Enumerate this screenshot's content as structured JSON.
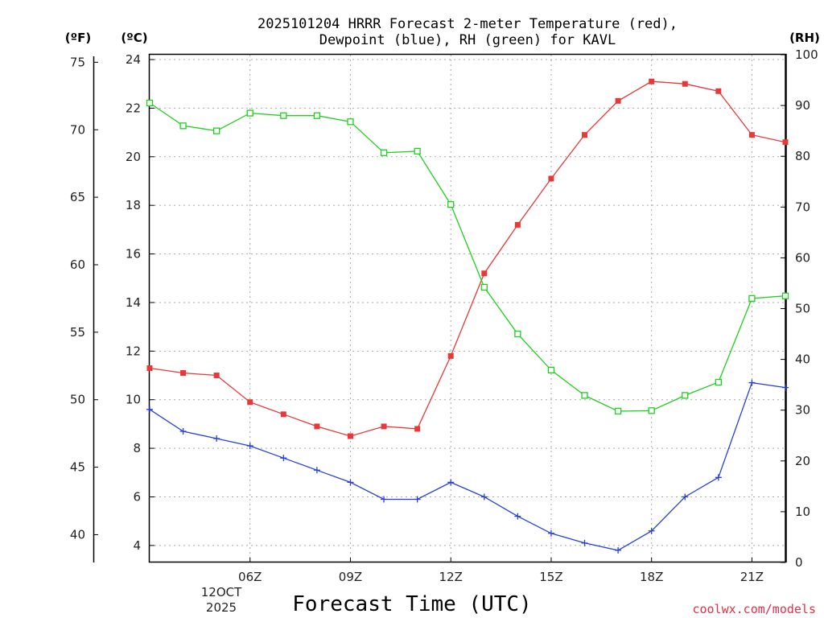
{
  "chart_data": {
    "type": "line",
    "title": [
      "2025101204 HRRR Forecast 2-meter Temperature (red),",
      "Dewpoint (blue), RH (green) for KAVL"
    ],
    "xlabel": "Forecast Time (UTC)",
    "x_range_hours": [
      3,
      22
    ],
    "x_ticks": [
      {
        "hour": 6,
        "label": "06Z"
      },
      {
        "hour": 9,
        "label": "09Z"
      },
      {
        "hour": 12,
        "label": "12Z"
      },
      {
        "hour": 15,
        "label": "15Z"
      },
      {
        "hour": 18,
        "label": "18Z"
      },
      {
        "hour": 21,
        "label": "21Z"
      }
    ],
    "date_label": [
      "12OCT",
      "2025"
    ],
    "y_left_celsius": {
      "unit": "(ºC)",
      "range": [
        3.3,
        24.2
      ],
      "ticks": [
        "4",
        "6",
        "8",
        "10",
        "12",
        "14",
        "16",
        "18",
        "20",
        "22",
        "24"
      ]
    },
    "y_left_fahrenheit": {
      "unit": "(ºF)",
      "ticks": [
        "40",
        "45",
        "50",
        "55",
        "60",
        "65",
        "70",
        "75"
      ]
    },
    "y_right_rh": {
      "unit": "(RH)",
      "range": [
        0,
        100
      ],
      "ticks": [
        "0",
        "10",
        "20",
        "30",
        "40",
        "50",
        "60",
        "70",
        "80",
        "90",
        "100"
      ]
    },
    "series": [
      {
        "name": "Temperature",
        "axis": "celsius",
        "color": "#e83838",
        "marker": "filled-square",
        "x": [
          3,
          4,
          5,
          6,
          7,
          8,
          9,
          10,
          11,
          12,
          13,
          14,
          15,
          16,
          17,
          18,
          19,
          20,
          21,
          22
        ],
        "values": [
          11.3,
          11.1,
          11.0,
          9.9,
          9.4,
          8.9,
          8.5,
          8.9,
          8.8,
          11.8,
          15.2,
          17.2,
          19.1,
          20.9,
          22.3,
          23.1,
          23.0,
          22.7,
          20.9,
          20.6
        ]
      },
      {
        "name": "Dewpoint",
        "axis": "celsius",
        "color": "#2840d8",
        "marker": "plus",
        "x": [
          3,
          4,
          5,
          6,
          7,
          8,
          9,
          10,
          11,
          12,
          13,
          14,
          15,
          16,
          17,
          18,
          19,
          20,
          21,
          22
        ],
        "values": [
          9.6,
          8.7,
          8.4,
          8.1,
          7.6,
          7.1,
          6.6,
          5.9,
          5.9,
          6.6,
          6.0,
          5.2,
          4.5,
          4.1,
          3.8,
          4.6,
          6.0,
          6.8,
          10.7,
          10.5
        ]
      },
      {
        "name": "RH",
        "axis": "rh",
        "color": "#20d020",
        "marker": "open-square",
        "x": [
          3,
          4,
          5,
          6,
          7,
          8,
          9,
          10,
          11,
          12,
          13,
          14,
          15,
          16,
          17,
          18,
          19,
          20,
          21,
          22
        ],
        "values": [
          90.5,
          86.0,
          85.0,
          88.5,
          88.0,
          88.0,
          86.8,
          80.7,
          81.0,
          70.5,
          54.2,
          45.0,
          37.9,
          32.9,
          29.8,
          29.9,
          32.9,
          35.5,
          52.0,
          52.5
        ]
      }
    ],
    "grid": true,
    "credit": "coolwx.com/models"
  }
}
